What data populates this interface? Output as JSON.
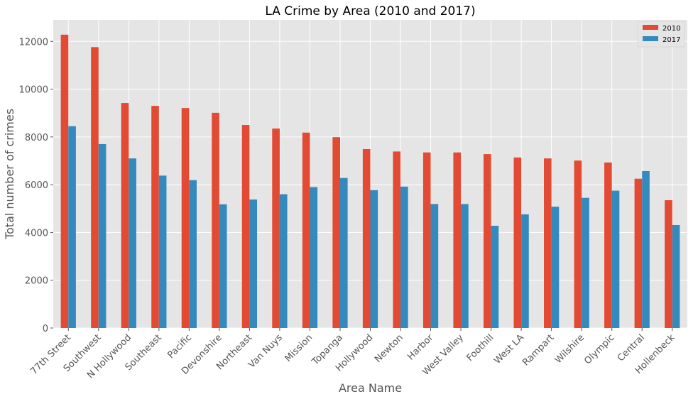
{
  "chart_data": {
    "type": "bar",
    "title": "LA Crime by Area (2010 and 2017)",
    "xlabel": "Area Name",
    "ylabel": "Total number of crimes",
    "ylim": [
      0,
      12900
    ],
    "yticks": [
      0,
      2000,
      4000,
      6000,
      8000,
      10000,
      12000
    ],
    "grid": true,
    "legend_position": "top-right",
    "categories": [
      "77th Street",
      "Southwest",
      "N Hollywood",
      "Southeast",
      "Pacific",
      "Devonshire",
      "Northeast",
      "Van Nuys",
      "Mission",
      "Topanga",
      "Hollywood",
      "Newton",
      "Harbor",
      "West Valley",
      "Foothill",
      "West LA",
      "Rampart",
      "Wilshire",
      "Olympic",
      "Central",
      "Hollenbeck"
    ],
    "series": [
      {
        "name": "2010",
        "color": "#E24A33",
        "values": [
          12280,
          11760,
          9420,
          9300,
          9210,
          9010,
          8500,
          8350,
          8180,
          7990,
          7490,
          7390,
          7350,
          7350,
          7280,
          7140,
          7100,
          7010,
          6930,
          6250,
          5350
        ]
      },
      {
        "name": "2017",
        "color": "#348ABD",
        "values": [
          8450,
          7700,
          7100,
          6380,
          6190,
          5180,
          5380,
          5600,
          5900,
          6280,
          5770,
          5920,
          5190,
          5190,
          4280,
          4760,
          5080,
          5450,
          5750,
          6570,
          4310
        ]
      }
    ]
  }
}
